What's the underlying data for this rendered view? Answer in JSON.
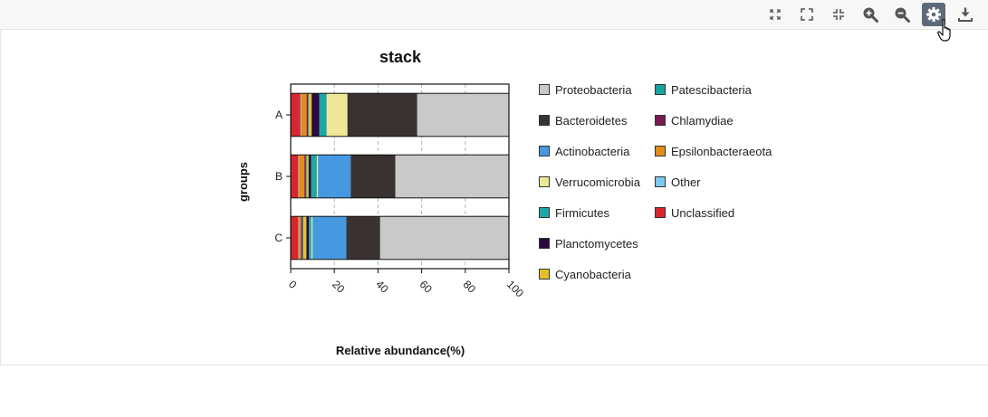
{
  "toolbar": {
    "tools": [
      {
        "name": "restore-icon",
        "active": false
      },
      {
        "name": "fullscreen-icon",
        "active": false
      },
      {
        "name": "exit-fullscreen-icon",
        "active": false
      },
      {
        "name": "zoom-in-icon",
        "active": false
      },
      {
        "name": "zoom-out-icon",
        "active": false
      },
      {
        "name": "settings-icon",
        "active": true
      },
      {
        "name": "download-icon",
        "active": false
      }
    ]
  },
  "chart_data": {
    "type": "bar",
    "orientation": "horizontal",
    "stacked": true,
    "title": "stack",
    "xlabel": "Relative abundance(%)",
    "ylabel": "groups",
    "xlim": [
      0,
      100
    ],
    "xticks": [
      0,
      20,
      40,
      60,
      80,
      100
    ],
    "grid": true,
    "legend_position": "right",
    "categories": [
      "A",
      "B",
      "C"
    ],
    "series": [
      {
        "name": "Unclassified",
        "color": "#d8262e",
        "values": [
          4.5,
          3.5,
          3.5
        ]
      },
      {
        "name": "Other",
        "color": "#7ec8f0",
        "values": [
          0.3,
          0.3,
          0.3
        ]
      },
      {
        "name": "Epsilonbacteraeota",
        "color": "#e08c1a",
        "values": [
          2.5,
          2.5,
          1.0
        ]
      },
      {
        "name": "Chlamydiae",
        "color": "#7a1a52",
        "values": [
          0.7,
          0.7,
          0.7
        ]
      },
      {
        "name": "Patescibacteria",
        "color": "#17a3a0",
        "values": [
          0.4,
          0.4,
          0.4
        ]
      },
      {
        "name": "Cyanobacteria",
        "color": "#e3c12a",
        "values": [
          1.2,
          0.8,
          1.3
        ]
      },
      {
        "name": "Planctomycetes",
        "color": "#2b0a3d",
        "values": [
          3.5,
          1.2,
          1.2
        ]
      },
      {
        "name": "Firmicutes",
        "color": "#1fa7a7",
        "values": [
          3.4,
          2.6,
          1.1
        ]
      },
      {
        "name": "Verrucomicrobia",
        "color": "#efe796",
        "values": [
          9.5,
          0.5,
          0.5
        ]
      },
      {
        "name": "Actinobacteria",
        "color": "#4699e0",
        "values": [
          0,
          15.0,
          15.5
        ]
      },
      {
        "name": "Bacteroidetes",
        "color": "#3a3230",
        "values": [
          32.0,
          20.5,
          15.5
        ]
      },
      {
        "name": "Proteobacteria",
        "color": "#c8c9ca",
        "values": [
          42.0,
          52.0,
          59.0
        ]
      }
    ],
    "legend": [
      {
        "name": "Proteobacteria",
        "color": "#c8c9ca"
      },
      {
        "name": "Bacteroidetes",
        "color": "#3a3230"
      },
      {
        "name": "Actinobacteria",
        "color": "#4699e0"
      },
      {
        "name": "Verrucomicrobia",
        "color": "#efe796"
      },
      {
        "name": "Firmicutes",
        "color": "#1fa7a7"
      },
      {
        "name": "Planctomycetes",
        "color": "#2b0a3d"
      },
      {
        "name": "Cyanobacteria",
        "color": "#e3c12a"
      },
      {
        "name": "Patescibacteria",
        "color": "#17a3a0"
      },
      {
        "name": "Chlamydiae",
        "color": "#7a1a52"
      },
      {
        "name": "Epsilonbacteraeota",
        "color": "#e08c1a"
      },
      {
        "name": "Other",
        "color": "#7ec8f0"
      },
      {
        "name": "Unclassified",
        "color": "#d8262e"
      }
    ]
  }
}
